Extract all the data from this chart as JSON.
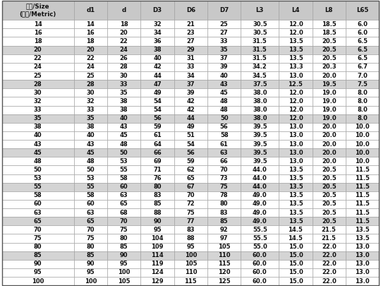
{
  "headers": [
    "规格/Size\n(公制/Metric)",
    "d1",
    "d",
    "D3",
    "D6",
    "D7",
    "L3",
    "L4",
    "L8",
    "L65"
  ],
  "rows": [
    [
      14,
      14,
      18,
      32,
      21,
      25,
      "30.5",
      "12.0",
      "18.5",
      "6.0"
    ],
    [
      16,
      16,
      20,
      34,
      23,
      27,
      "30.5",
      "12.0",
      "18.5",
      "6.0"
    ],
    [
      18,
      18,
      22,
      36,
      27,
      33,
      "31.5",
      "13.5",
      "20.5",
      "6.5"
    ],
    [
      20,
      20,
      24,
      38,
      29,
      35,
      "31.5",
      "13.5",
      "20.5",
      "6.5"
    ],
    [
      22,
      22,
      26,
      40,
      31,
      37,
      "31.5",
      "13.5",
      "20.5",
      "6.5"
    ],
    [
      24,
      24,
      28,
      42,
      33,
      39,
      "34.2",
      "13.3",
      "20.3",
      "6.7"
    ],
    [
      25,
      25,
      30,
      44,
      34,
      40,
      "34.5",
      "13.0",
      "20.0",
      "7.0"
    ],
    [
      28,
      28,
      33,
      47,
      37,
      43,
      "37.5",
      "12.5",
      "19.5",
      "7.5"
    ],
    [
      30,
      30,
      35,
      49,
      39,
      45,
      "38.0",
      "12.0",
      "19.0",
      "8.0"
    ],
    [
      32,
      32,
      38,
      54,
      42,
      48,
      "38.0",
      "12.0",
      "19.0",
      "8.0"
    ],
    [
      33,
      33,
      38,
      54,
      42,
      48,
      "38.0",
      "12.0",
      "19.0",
      "8.0"
    ],
    [
      35,
      35,
      40,
      56,
      44,
      50,
      "38.0",
      "12.0",
      "19.0",
      "8.0"
    ],
    [
      38,
      38,
      43,
      59,
      49,
      56,
      "39.5",
      "13.0",
      "20.0",
      "10.0"
    ],
    [
      40,
      40,
      45,
      61,
      51,
      58,
      "39.5",
      "13.0",
      "20.0",
      "10.0"
    ],
    [
      43,
      43,
      48,
      64,
      54,
      61,
      "39.5",
      "13.0",
      "20.0",
      "10.0"
    ],
    [
      45,
      45,
      50,
      66,
      56,
      63,
      "39.5",
      "13.0",
      "20.0",
      "10.0"
    ],
    [
      48,
      48,
      53,
      69,
      59,
      66,
      "39.5",
      "13.0",
      "20.0",
      "10.0"
    ],
    [
      50,
      50,
      55,
      71,
      62,
      70,
      "44.0",
      "13.5",
      "20.5",
      "11.5"
    ],
    [
      53,
      53,
      58,
      76,
      65,
      73,
      "44.0",
      "13.5",
      "20.5",
      "11.5"
    ],
    [
      55,
      55,
      60,
      80,
      67,
      75,
      "44.0",
      "13.5",
      "20.5",
      "11.5"
    ],
    [
      58,
      58,
      63,
      83,
      70,
      78,
      "49.0",
      "13.5",
      "20.5",
      "11.5"
    ],
    [
      60,
      60,
      65,
      85,
      72,
      80,
      "49.0",
      "13.5",
      "20.5",
      "11.5"
    ],
    [
      63,
      63,
      68,
      88,
      75,
      83,
      "49.0",
      "13.5",
      "20.5",
      "11.5"
    ],
    [
      65,
      65,
      70,
      90,
      77,
      85,
      "49.0",
      "13.5",
      "20.5",
      "11.5"
    ],
    [
      70,
      70,
      75,
      95,
      83,
      92,
      "55.5",
      "14.5",
      "21.5",
      "13.5"
    ],
    [
      75,
      75,
      80,
      104,
      88,
      97,
      "55.5",
      "14.5",
      "21.5",
      "13.5"
    ],
    [
      80,
      80,
      85,
      109,
      95,
      105,
      "55.0",
      "15.0",
      "22.0",
      "13.0"
    ],
    [
      85,
      85,
      90,
      114,
      100,
      110,
      "60.0",
      "15.0",
      "22.0",
      "13.0"
    ],
    [
      90,
      90,
      95,
      119,
      105,
      115,
      "60.0",
      "15.0",
      "22.0",
      "13.0"
    ],
    [
      95,
      95,
      100,
      124,
      110,
      120,
      "60.0",
      "15.0",
      "22.0",
      "13.0"
    ],
    [
      100,
      100,
      105,
      129,
      115,
      125,
      "60.0",
      "15.0",
      "22.0",
      "13.0"
    ]
  ],
  "shaded_rows": [
    3,
    7,
    11,
    15,
    19,
    23,
    27
  ],
  "col_props": [
    1.55,
    0.72,
    0.72,
    0.72,
    0.72,
    0.72,
    0.82,
    0.72,
    0.72,
    0.72
  ],
  "header_bg": "#c8c8c8",
  "shaded_bg": "#d4d4d4",
  "white_bg": "#ffffff",
  "border_color": "#999999",
  "text_color": "#111111",
  "header_fontsize": 6.2,
  "cell_fontsize": 6.0,
  "fig_width": 5.4,
  "fig_height": 4.05,
  "dpi": 100
}
